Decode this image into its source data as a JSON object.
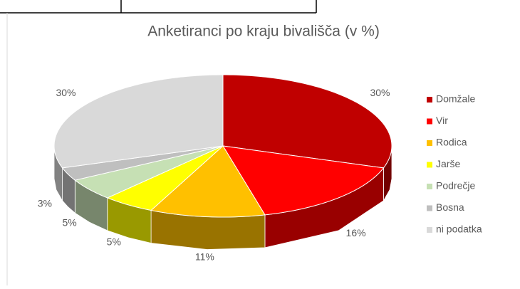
{
  "chart_data": {
    "type": "pie3d",
    "title": "Anketiranci po kraju bivališča (v %)",
    "categories": [
      "Domžale",
      "Vir",
      "Rodica",
      "Jarše",
      "Podrečje",
      "Bosna",
      "ni podatka"
    ],
    "values": [
      30,
      16,
      11,
      5,
      5,
      3,
      30
    ],
    "value_labels": [
      "30%",
      "16%",
      "11%",
      "5%",
      "5%",
      "3%",
      "30%"
    ],
    "colors": [
      "#c00000",
      "#ff0000",
      "#ffc000",
      "#ffff00",
      "#c6e0b4",
      "#bfbfbf",
      "#d9d9d9"
    ],
    "legend": "right"
  }
}
